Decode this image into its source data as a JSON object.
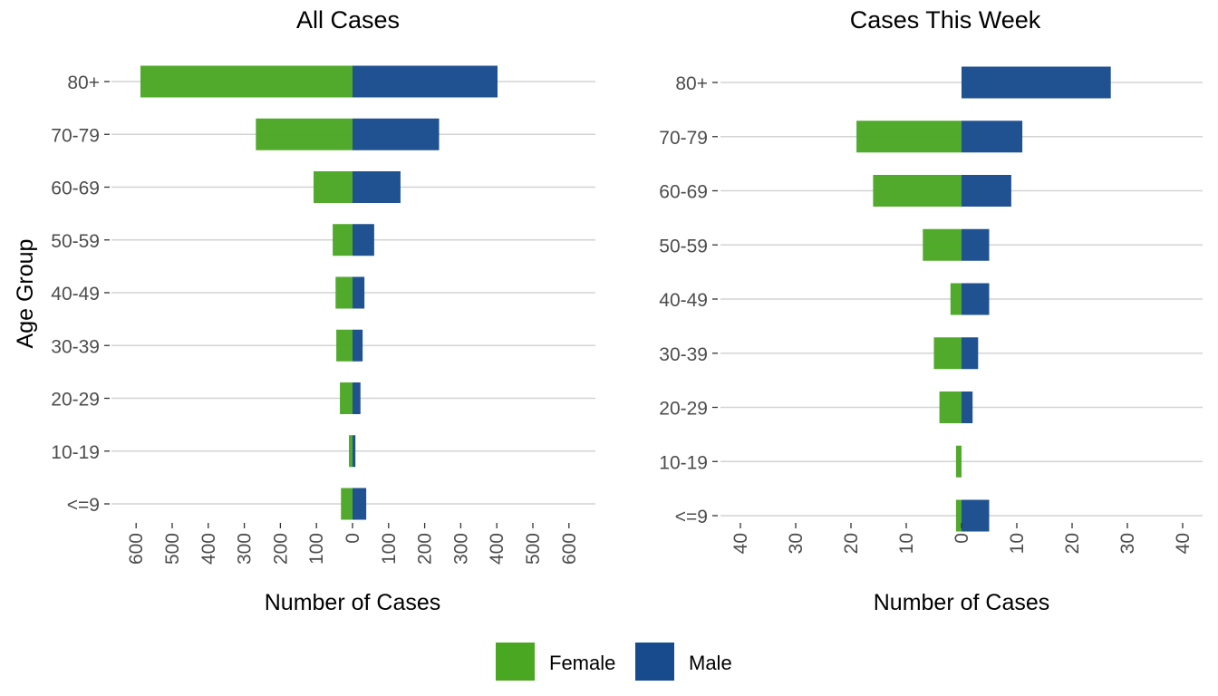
{
  "colors": {
    "female": "#4aa722",
    "male": "#174b8d",
    "grid": "#d3d3d3"
  },
  "legend": [
    {
      "name": "Female",
      "color": "#4aa722"
    },
    {
      "name": "Male",
      "color": "#174b8d"
    }
  ],
  "shared_ylabel": "Age Group",
  "chart_data": [
    {
      "type": "bar",
      "title": "All Cases",
      "xlabel": "Number of Cases",
      "ylabel": "Age Group",
      "orientation": "horizontal-pyramid",
      "categories": [
        "<=9",
        "10-19",
        "20-29",
        "30-39",
        "40-49",
        "50-59",
        "60-69",
        "70-79",
        "80+"
      ],
      "series": [
        {
          "name": "Female",
          "values": [
            -32,
            -10,
            -35,
            -45,
            -47,
            -55,
            -108,
            -268,
            -588
          ]
        },
        {
          "name": "Male",
          "values": [
            38,
            8,
            22,
            28,
            33,
            60,
            133,
            240,
            402
          ]
        }
      ],
      "xlim": [
        -600,
        600
      ],
      "xticks": [
        -600,
        -500,
        -400,
        -300,
        -200,
        -100,
        0,
        100,
        200,
        300,
        400,
        500,
        600
      ],
      "xtick_labels": [
        "600",
        "500",
        "400",
        "300",
        "200",
        "100",
        "0",
        "100",
        "200",
        "300",
        "400",
        "500",
        "600"
      ],
      "grid": "horizontal"
    },
    {
      "type": "bar",
      "title": "Cases This Week",
      "xlabel": "Number of Cases",
      "orientation": "horizontal-pyramid",
      "categories": [
        "<=9",
        "10-19",
        "20-29",
        "30-39",
        "40-49",
        "50-59",
        "60-69",
        "70-79",
        "80+"
      ],
      "series": [
        {
          "name": "Female",
          "values": [
            -1,
            -1,
            -4,
            -5,
            -2,
            -7,
            -16,
            -19,
            0
          ]
        },
        {
          "name": "Male",
          "values": [
            5,
            0,
            2,
            3,
            5,
            5,
            9,
            11,
            27
          ]
        }
      ],
      "xlim": [
        -40,
        40
      ],
      "xticks": [
        -40,
        -30,
        -20,
        -10,
        0,
        10,
        20,
        30,
        40
      ],
      "xtick_labels": [
        "40",
        "30",
        "20",
        "10",
        "0",
        "10",
        "20",
        "30",
        "40"
      ],
      "grid": "horizontal"
    }
  ]
}
